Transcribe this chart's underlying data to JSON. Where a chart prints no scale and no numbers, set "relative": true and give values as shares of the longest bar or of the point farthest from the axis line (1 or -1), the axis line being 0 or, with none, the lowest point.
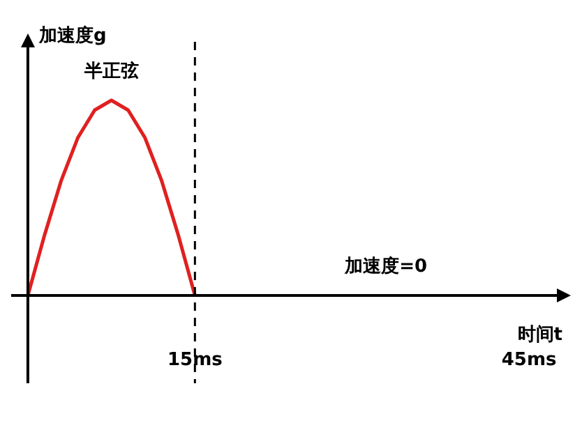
{
  "chart_data": {
    "type": "line",
    "relative": true,
    "x": [
      0,
      1.5,
      3,
      4.5,
      6,
      7.5,
      9,
      10.5,
      12,
      13.5,
      15
    ],
    "series": [
      {
        "color": "#e02020",
        "values": [
          0,
          0.31,
          0.59,
          0.81,
          0.95,
          1,
          0.95,
          0.81,
          0.59,
          0.31,
          0
        ]
      }
    ],
    "xlim": [
      -1.5,
      48
    ],
    "xticks": [
      {
        "value": 15,
        "label": "15ms"
      },
      {
        "value": 45,
        "label": "45ms"
      }
    ],
    "xlabel": "时间t",
    "ylabel": "加速度g",
    "annotations": [
      {
        "text": "半正弦",
        "x": 7.5,
        "y": 1
      },
      "加速度=0"
    ],
    "ref_lines": [
      {
        "axis": "x",
        "value": 15,
        "line_style": "dashed"
      }
    ],
    "tick_labels": "x",
    "marker": "none",
    "line_style": "solid"
  }
}
